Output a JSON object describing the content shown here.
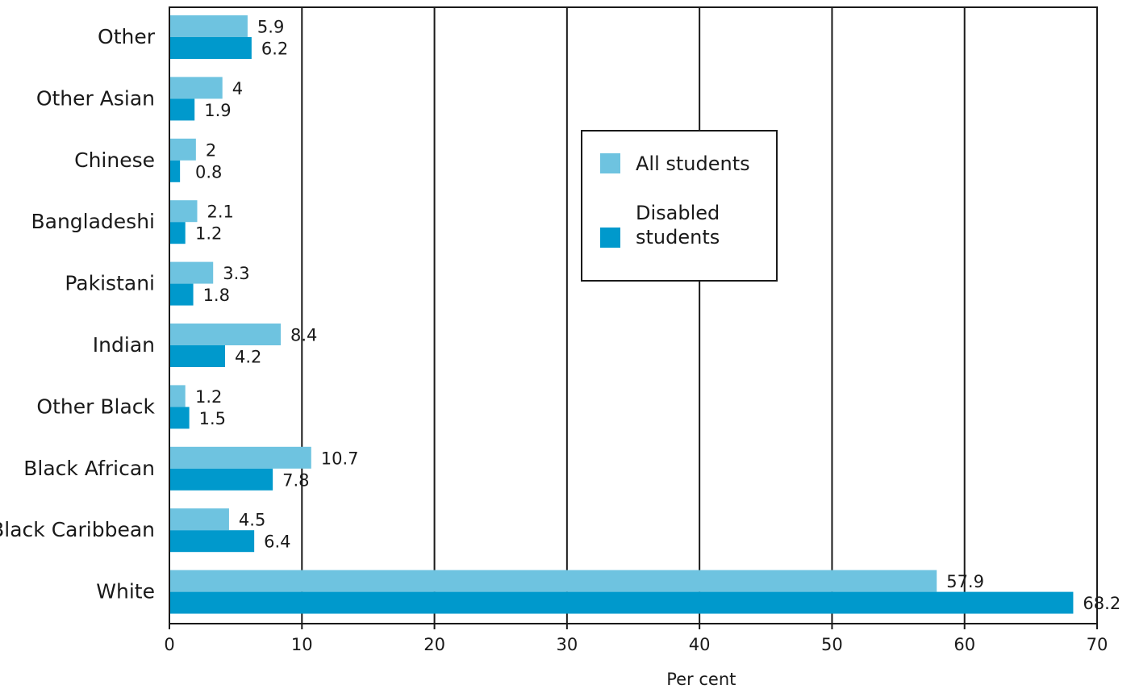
{
  "chart_data": {
    "type": "bar",
    "orientation": "horizontal",
    "categories": [
      "Other",
      "Other Asian",
      "Chinese",
      "Bangladeshi",
      "Pakistani",
      "Indian",
      "Other Black",
      "Black African",
      "Black Caribbean",
      "White"
    ],
    "series": [
      {
        "name": "All students",
        "color": "#6ec3e0",
        "values": [
          5.9,
          4,
          2,
          2.1,
          3.3,
          8.4,
          1.2,
          10.7,
          4.5,
          57.9
        ]
      },
      {
        "name": "Disabled students",
        "color": "#0099cc",
        "values": [
          6.2,
          1.9,
          0.8,
          1.2,
          1.8,
          4.2,
          1.5,
          7.8,
          6.4,
          68.2
        ]
      }
    ],
    "data_labels": [
      [
        "5.9",
        "4",
        "2",
        "2.1",
        "3.3",
        "8.4",
        "1.2",
        "10.7",
        "4.5",
        "57.9"
      ],
      [
        "6.2",
        "1.9",
        "0.8",
        "1.2",
        "1.8",
        "4.2",
        "1.5",
        "7.8",
        "6.4",
        "68.2"
      ]
    ],
    "xlabel": "Per cent",
    "ylabel": "",
    "xlim": [
      0,
      70
    ],
    "xticks": [
      "0",
      "10",
      "20",
      "30",
      "40",
      "50",
      "60",
      "70"
    ],
    "grid": "vertical",
    "legend": {
      "placement": "center",
      "entries": [
        [
          "All students"
        ],
        [
          "Disabled",
          "students"
        ]
      ]
    }
  }
}
